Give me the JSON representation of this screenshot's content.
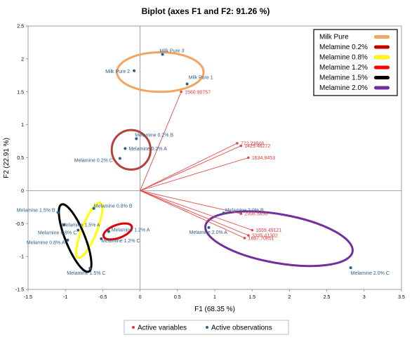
{
  "chart_data": {
    "type": "scatter",
    "title": "Biplot (axes F1 and F2: 91.26 %)",
    "xlabel": "F1 (68.35 %)",
    "ylabel": "F2 (22.91 %)",
    "xlim": [
      -1.5,
      3.5
    ],
    "ylim": [
      -1.5,
      2.5
    ],
    "x_ticks": [
      "-1.5",
      "-1",
      "-0.5",
      "0",
      "0.5",
      "1",
      "1.5",
      "2",
      "2.5",
      "3",
      "3.5"
    ],
    "y_ticks": [
      "2.5",
      "2",
      "1.5",
      "1",
      "0.5",
      "0",
      "-0.5",
      "-1",
      "-1.5"
    ],
    "grid": false,
    "variables": [
      {
        "label": "1560.90757",
        "x": 0.55,
        "y": 1.5
      },
      {
        "label": "772.23848",
        "x": 1.3,
        "y": 0.72
      },
      {
        "label": "1429.46272",
        "x": 1.35,
        "y": 0.68
      },
      {
        "label": "1634.8453",
        "x": 1.45,
        "y": 0.5
      },
      {
        "label": "2998.5856",
        "x": 1.35,
        "y": -0.35
      },
      {
        "label": "1659.49121",
        "x": 1.5,
        "y": -0.6
      },
      {
        "label": "3335.41302",
        "x": 1.45,
        "y": -0.68
      },
      {
        "label": "1667.70651",
        "x": 1.4,
        "y": -0.72
      }
    ],
    "observations": [
      {
        "label": "Milk Pure 3",
        "x": 0.3,
        "y": 2.07
      },
      {
        "label": "Milk Pure 2",
        "x": -0.08,
        "y": 1.82
      },
      {
        "label": "Milk Pure 1",
        "x": 0.63,
        "y": 1.62
      },
      {
        "label": "Melamine 0.2% B",
        "x": -0.05,
        "y": 0.79
      },
      {
        "label": "Melamine 0.2% A",
        "x": -0.2,
        "y": 0.64
      },
      {
        "label": "Melamine 0.2% C",
        "x": -0.27,
        "y": 0.49
      },
      {
        "label": "Melamine 0.8% B",
        "x": -0.62,
        "y": -0.27
      },
      {
        "label": "Melamine 1.5% B",
        "x": -1.1,
        "y": -0.33
      },
      {
        "label": "Melamine 1.5% A",
        "x": -1.02,
        "y": -0.52
      },
      {
        "label": "Melamine 0.8% C",
        "x": -0.83,
        "y": -0.6
      },
      {
        "label": "Melamine 0.8% A",
        "x": -0.97,
        "y": -0.75
      },
      {
        "label": "Melamine 1.2% A",
        "x": -0.42,
        "y": -0.62
      },
      {
        "label": "Melamine 1.2% C",
        "x": -0.52,
        "y": -0.73
      },
      {
        "label": "Melamine 1.5% C",
        "x": -0.67,
        "y": -1.18
      },
      {
        "label": "Melamine 2.0% B",
        "x": 1.12,
        "y": -0.34
      },
      {
        "label": "Melamine 2.0% A",
        "x": 0.92,
        "y": -0.56
      },
      {
        "label": "Melamine 2.0% C",
        "x": 2.82,
        "y": -1.17
      }
    ],
    "ellipses": [
      {
        "group": "Milk Pure",
        "color": "#f4a460",
        "cx": 0.27,
        "cy": 1.8,
        "rx": 0.58,
        "ry": 0.3,
        "rot": 0
      },
      {
        "group": "Melamine 0.2%",
        "color": "#b5433d",
        "cx": -0.12,
        "cy": 0.62,
        "rx": 0.26,
        "ry": 0.3,
        "rot": 0
      },
      {
        "group": "Melamine 0.8%",
        "color": "#ffff00",
        "cx": -0.68,
        "cy": -0.6,
        "rx": 0.1,
        "ry": 0.45,
        "rot": 22
      },
      {
        "group": "Melamine 1.2%",
        "color": "#e00000",
        "cx": -0.3,
        "cy": -0.62,
        "rx": 0.2,
        "ry": 0.1,
        "rot": -20
      },
      {
        "group": "Melamine 1.5%",
        "color": "#000000",
        "cx": -0.87,
        "cy": -0.72,
        "rx": 0.13,
        "ry": 0.55,
        "rot": -22
      },
      {
        "group": "Melamine 2.0%",
        "color": "#7030a0",
        "cx": 1.86,
        "cy": -0.73,
        "rx": 1.0,
        "ry": 0.37,
        "rot": 10
      }
    ],
    "legend": {
      "position": "top-right",
      "entries": [
        {
          "label": "Milk Pure",
          "color": "#f4a460"
        },
        {
          "label": "Melamine 0.2%",
          "color": "#c00000"
        },
        {
          "label": "Melamine 0.8%",
          "color": "#ffff00"
        },
        {
          "label": "Melamine 1.2%",
          "color": "#ff0000"
        },
        {
          "label": "Melamine 1.5%",
          "color": "#000000"
        },
        {
          "label": "Melamine 2.0%",
          "color": "#7030a0"
        }
      ]
    },
    "bottom_legend": {
      "position": "bottom-center",
      "entries": [
        {
          "label": "Active variables",
          "color": "#e03c3c"
        },
        {
          "label": "Active observations",
          "color": "#2c5f8a"
        }
      ]
    }
  }
}
